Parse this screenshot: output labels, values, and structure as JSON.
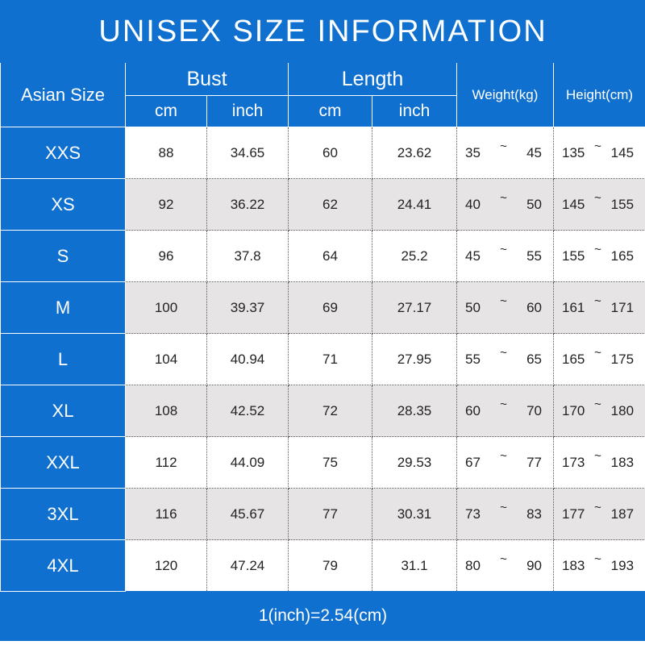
{
  "title": "UNISEX SIZE INFORMATION",
  "header": {
    "size": "Asian Size",
    "groups": [
      "Bust",
      "Length"
    ],
    "units": [
      "cm",
      "inch",
      "cm",
      "inch"
    ],
    "weight": "Weight(kg)",
    "height": "Height(cm)"
  },
  "range_separator": "~",
  "rows": [
    [
      "XXS",
      "88",
      "34.65",
      "60",
      "23.62",
      "35",
      "45",
      "135",
      "145"
    ],
    [
      "XS",
      "92",
      "36.22",
      "62",
      "24.41",
      "40",
      "50",
      "145",
      "155"
    ],
    [
      "S",
      "96",
      "37.8",
      "64",
      "25.2",
      "45",
      "55",
      "155",
      "165"
    ],
    [
      "M",
      "100",
      "39.37",
      "69",
      "27.17",
      "50",
      "60",
      "161",
      "171"
    ],
    [
      "L",
      "104",
      "40.94",
      "71",
      "27.95",
      "55",
      "65",
      "165",
      "175"
    ],
    [
      "XL",
      "108",
      "42.52",
      "72",
      "28.35",
      "60",
      "70",
      "170",
      "180"
    ],
    [
      "XXL",
      "112",
      "44.09",
      "75",
      "29.53",
      "67",
      "77",
      "173",
      "183"
    ],
    [
      "3XL",
      "116",
      "45.67",
      "77",
      "30.31",
      "73",
      "83",
      "177",
      "187"
    ],
    [
      "4XL",
      "120",
      "47.24",
      "79",
      "31.1",
      "80",
      "90",
      "183",
      "193"
    ]
  ],
  "footer": "1(inch)=2.54(cm)"
}
